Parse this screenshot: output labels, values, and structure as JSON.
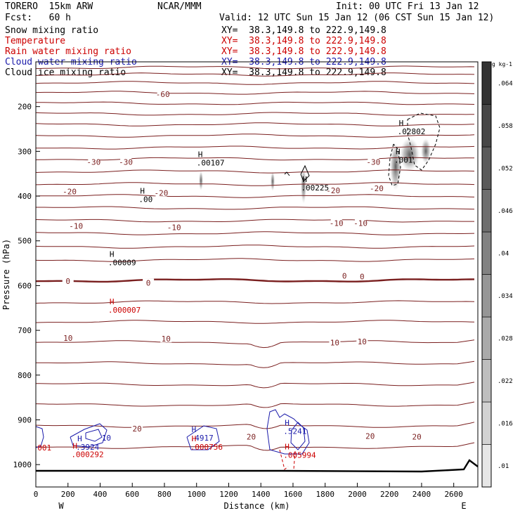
{
  "header": {
    "model": "TORERO  15km ARW",
    "org": "NCAR/MMM",
    "init": "Init: 00 UTC Fri 13 Jan 12",
    "fcst": "Fcst:   60 h",
    "valid": "Valid: 12 UTC Sun 15 Jan 12 (06 CST Sun 15 Jan 12)",
    "fields": [
      {
        "name": "Snow mixing ratio",
        "xy": "XY=  38.3,149.8 to 222.9,149.8",
        "color": "#000000"
      },
      {
        "name": "Temperature",
        "xy": "XY=  38.3,149.8 to 222.9,149.8",
        "color": "#cc0000"
      },
      {
        "name": "Rain water mixing ratio",
        "xy": "XY=  38.3,149.8 to 222.9,149.8",
        "color": "#cc0000"
      },
      {
        "name": "Cloud water mixing ratio",
        "xy": "XY=  38.3,149.8 to 222.9,149.8",
        "color": "#1a1aaa"
      },
      {
        "name": "Cloud ice mixing ratio",
        "xy": "XY=  38.3,149.8 to 222.9,149.8",
        "color": "#000000"
      }
    ]
  },
  "chart_data": {
    "type": "contour-cross-section",
    "xlabel": "Distance (km)",
    "ylabel": "Pressure (hPa)",
    "xlim": [
      0,
      2750
    ],
    "ylim": [
      1050,
      100
    ],
    "x_ticks": [
      0,
      200,
      400,
      600,
      800,
      1000,
      1200,
      1400,
      1600,
      1800,
      2000,
      2200,
      2400,
      2600
    ],
    "y_ticks": [
      200,
      300,
      400,
      500,
      600,
      700,
      800,
      900,
      1000
    ],
    "endpoint_left": "W",
    "endpoint_right": "E",
    "colorbar": {
      "unit": "g kg-1",
      "levels": [
        0.01,
        0.016,
        0.022,
        0.028,
        0.034,
        0.04,
        0.046,
        0.052,
        0.058,
        0.064
      ],
      "labels": [
        ".01",
        ".016",
        ".022",
        ".028",
        ".034",
        ".04",
        ".046",
        ".052",
        ".058",
        ".064"
      ]
    },
    "temperature_isotherm_labels": [
      {
        "label": "-60",
        "x": 790,
        "p": 172
      },
      {
        "label": "-30",
        "x": 360,
        "p": 324
      },
      {
        "label": "-30",
        "x": 560,
        "p": 324
      },
      {
        "label": "-30",
        "x": 2100,
        "p": 324
      },
      {
        "label": "-20",
        "x": 210,
        "p": 390
      },
      {
        "label": "-20",
        "x": 780,
        "p": 393
      },
      {
        "label": "-20",
        "x": 1850,
        "p": 387
      },
      {
        "label": "-20",
        "x": 2120,
        "p": 383
      },
      {
        "label": "-10",
        "x": 250,
        "p": 467
      },
      {
        "label": "-10",
        "x": 860,
        "p": 470
      },
      {
        "label": "-10",
        "x": 1870,
        "p": 460
      },
      {
        "label": "-10",
        "x": 2020,
        "p": 460
      },
      {
        "label": "0",
        "x": 200,
        "p": 590
      },
      {
        "label": "0",
        "x": 700,
        "p": 594
      },
      {
        "label": "0",
        "x": 1920,
        "p": 578
      },
      {
        "label": "0",
        "x": 2030,
        "p": 580
      },
      {
        "label": "10",
        "x": 200,
        "p": 717
      },
      {
        "label": "10",
        "x": 810,
        "p": 719
      },
      {
        "label": "10",
        "x": 1860,
        "p": 727
      },
      {
        "label": "10",
        "x": 2030,
        "p": 725
      },
      {
        "label": "20",
        "x": 630,
        "p": 920
      },
      {
        "label": "20",
        "x": 1340,
        "p": 938
      },
      {
        "label": "20",
        "x": 2080,
        "p": 936
      },
      {
        "label": "20",
        "x": 2370,
        "p": 938
      }
    ],
    "maxima": [
      {
        "label": ".00107",
        "x": 1000,
        "p": 330,
        "color": "#000000"
      },
      {
        "label": ".00",
        "x": 640,
        "p": 412,
        "color": "#000000"
      },
      {
        "label": ".00225",
        "x": 1650,
        "p": 386,
        "color": "#000000"
      },
      {
        "label": ".02802",
        "x": 2250,
        "p": 260,
        "color": "#000000"
      },
      {
        "label": ".001",
        "x": 2230,
        "p": 324,
        "color": "#000000"
      },
      {
        "label": ".00009",
        "x": 450,
        "p": 553,
        "color": "#000000"
      },
      {
        "label": ".000007",
        "x": 450,
        "p": 659,
        "color": "#cc0000"
      },
      {
        "label": ".3924",
        "x": 250,
        "p": 965,
        "color": "#1a1aaa"
      },
      {
        "label": ".000292",
        "x": 220,
        "p": 982,
        "color": "#cc0000"
      },
      {
        "label": ".4917",
        "x": 960,
        "p": 945,
        "color": "#1a1aaa"
      },
      {
        "label": ".000756",
        "x": 960,
        "p": 965,
        "color": "#cc0000"
      },
      {
        "label": ".5241",
        "x": 1540,
        "p": 930,
        "color": "#1a1aaa"
      },
      {
        "label": ".005994",
        "x": 1540,
        "p": 983,
        "color": "#cc0000"
      }
    ],
    "contour_labels": [
      {
        "label": "10",
        "x": 410,
        "p": 940,
        "color": "#1a1aaa"
      },
      {
        "label": "001",
        "x": 10,
        "p": 962,
        "color": "#cc0000"
      }
    ]
  }
}
